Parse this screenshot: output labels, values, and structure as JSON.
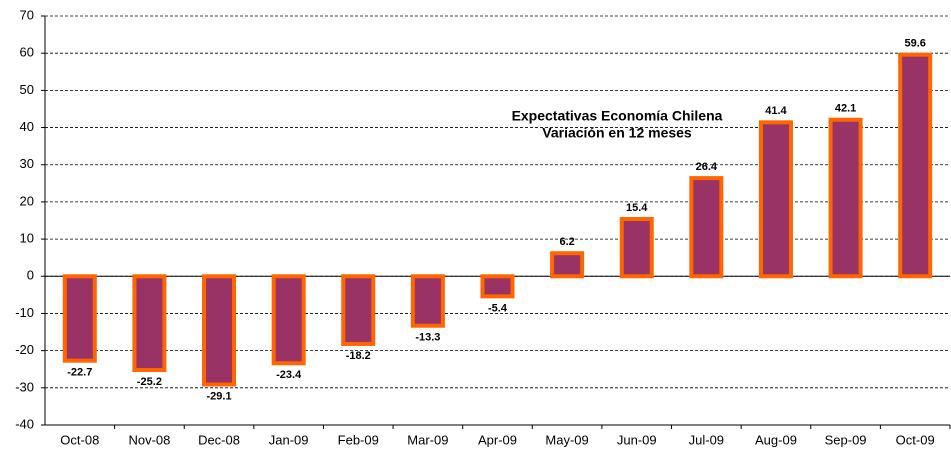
{
  "chart_data": {
    "type": "bar",
    "title": "Expectativas Economía Chilena",
    "subtitle": "Variación en 12 meses",
    "categories": [
      "Oct-08",
      "Nov-08",
      "Dec-08",
      "Jan-09",
      "Feb-09",
      "Mar-09",
      "Apr-09",
      "May-09",
      "Jun-09",
      "Jul-09",
      "Aug-09",
      "Sep-09",
      "Oct-09"
    ],
    "values": [
      -22.7,
      -25.2,
      -29.1,
      -23.4,
      -18.2,
      -13.3,
      -5.4,
      6.2,
      15.4,
      26.4,
      41.4,
      42.1,
      59.6
    ],
    "color": "#993366",
    "edge_color": "#ff6600",
    "label_color": "#0000ff",
    "title_color": "#ff0000",
    "ylim": [
      -40,
      70
    ],
    "yticks": [
      -40,
      -30,
      -20,
      -10,
      0,
      10,
      20,
      30,
      40,
      50,
      60,
      70
    ],
    "grid": true
  }
}
